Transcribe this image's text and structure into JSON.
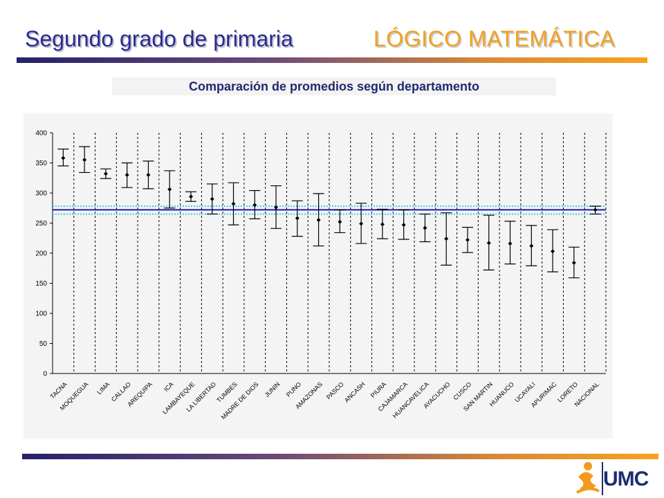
{
  "slide": {
    "title": "Segundo grado de primaria",
    "subject": "LÓGICO MATEMÁTICA",
    "logo_text": "UMC"
  },
  "colors": {
    "title": "#2b2b8f",
    "subject": "#f0a020",
    "reference_line": "#1a1aaa",
    "reference_band": "#3cc8f0"
  },
  "chart_data": {
    "type": "errorbar",
    "title": "Comparación de promedios según departamento",
    "xlabel": "",
    "ylabel": "",
    "ylim": [
      0,
      400
    ],
    "yticks": [
      0,
      50,
      100,
      150,
      200,
      250,
      300,
      350,
      400
    ],
    "grid": "vertical dashed",
    "categories": [
      "TACNA",
      "MOQUEGUA",
      "LIMA",
      "CALLAO",
      "AREQUIPA",
      "ICA",
      "LAMBAYEQUE",
      "LA LIBERTAD",
      "TUMBES",
      "MADRE DE DIOS",
      "JUNIN",
      "PUNO",
      "AMAZONAS",
      "PASCO",
      "ANCASH",
      "PIURA",
      "CAJAMARCA",
      "HUANCAVELICA",
      "AYACUCHO",
      "CUSCO",
      "SAN MARTIN",
      "HUANUCO",
      "UCAYALI",
      "APURIMAC",
      "LORETO",
      "NACIONAL"
    ],
    "means": [
      358,
      355,
      332,
      330,
      330,
      306,
      294,
      290,
      282,
      280,
      276,
      258,
      255,
      252,
      249,
      248,
      247,
      242,
      224,
      222,
      217,
      216,
      212,
      203,
      184,
      272
    ],
    "lower": [
      345,
      334,
      324,
      309,
      307,
      275,
      286,
      265,
      247,
      257,
      241,
      228,
      212,
      234,
      216,
      224,
      223,
      219,
      180,
      201,
      172,
      182,
      179,
      169,
      159,
      265
    ],
    "upper": [
      373,
      377,
      340,
      350,
      353,
      337,
      302,
      315,
      317,
      304,
      312,
      287,
      299,
      272,
      283,
      273,
      272,
      265,
      267,
      243,
      263,
      253,
      246,
      239,
      210,
      278
    ],
    "reference": {
      "national_mean": 272,
      "band_upper": 278,
      "band_lower": 265
    }
  }
}
